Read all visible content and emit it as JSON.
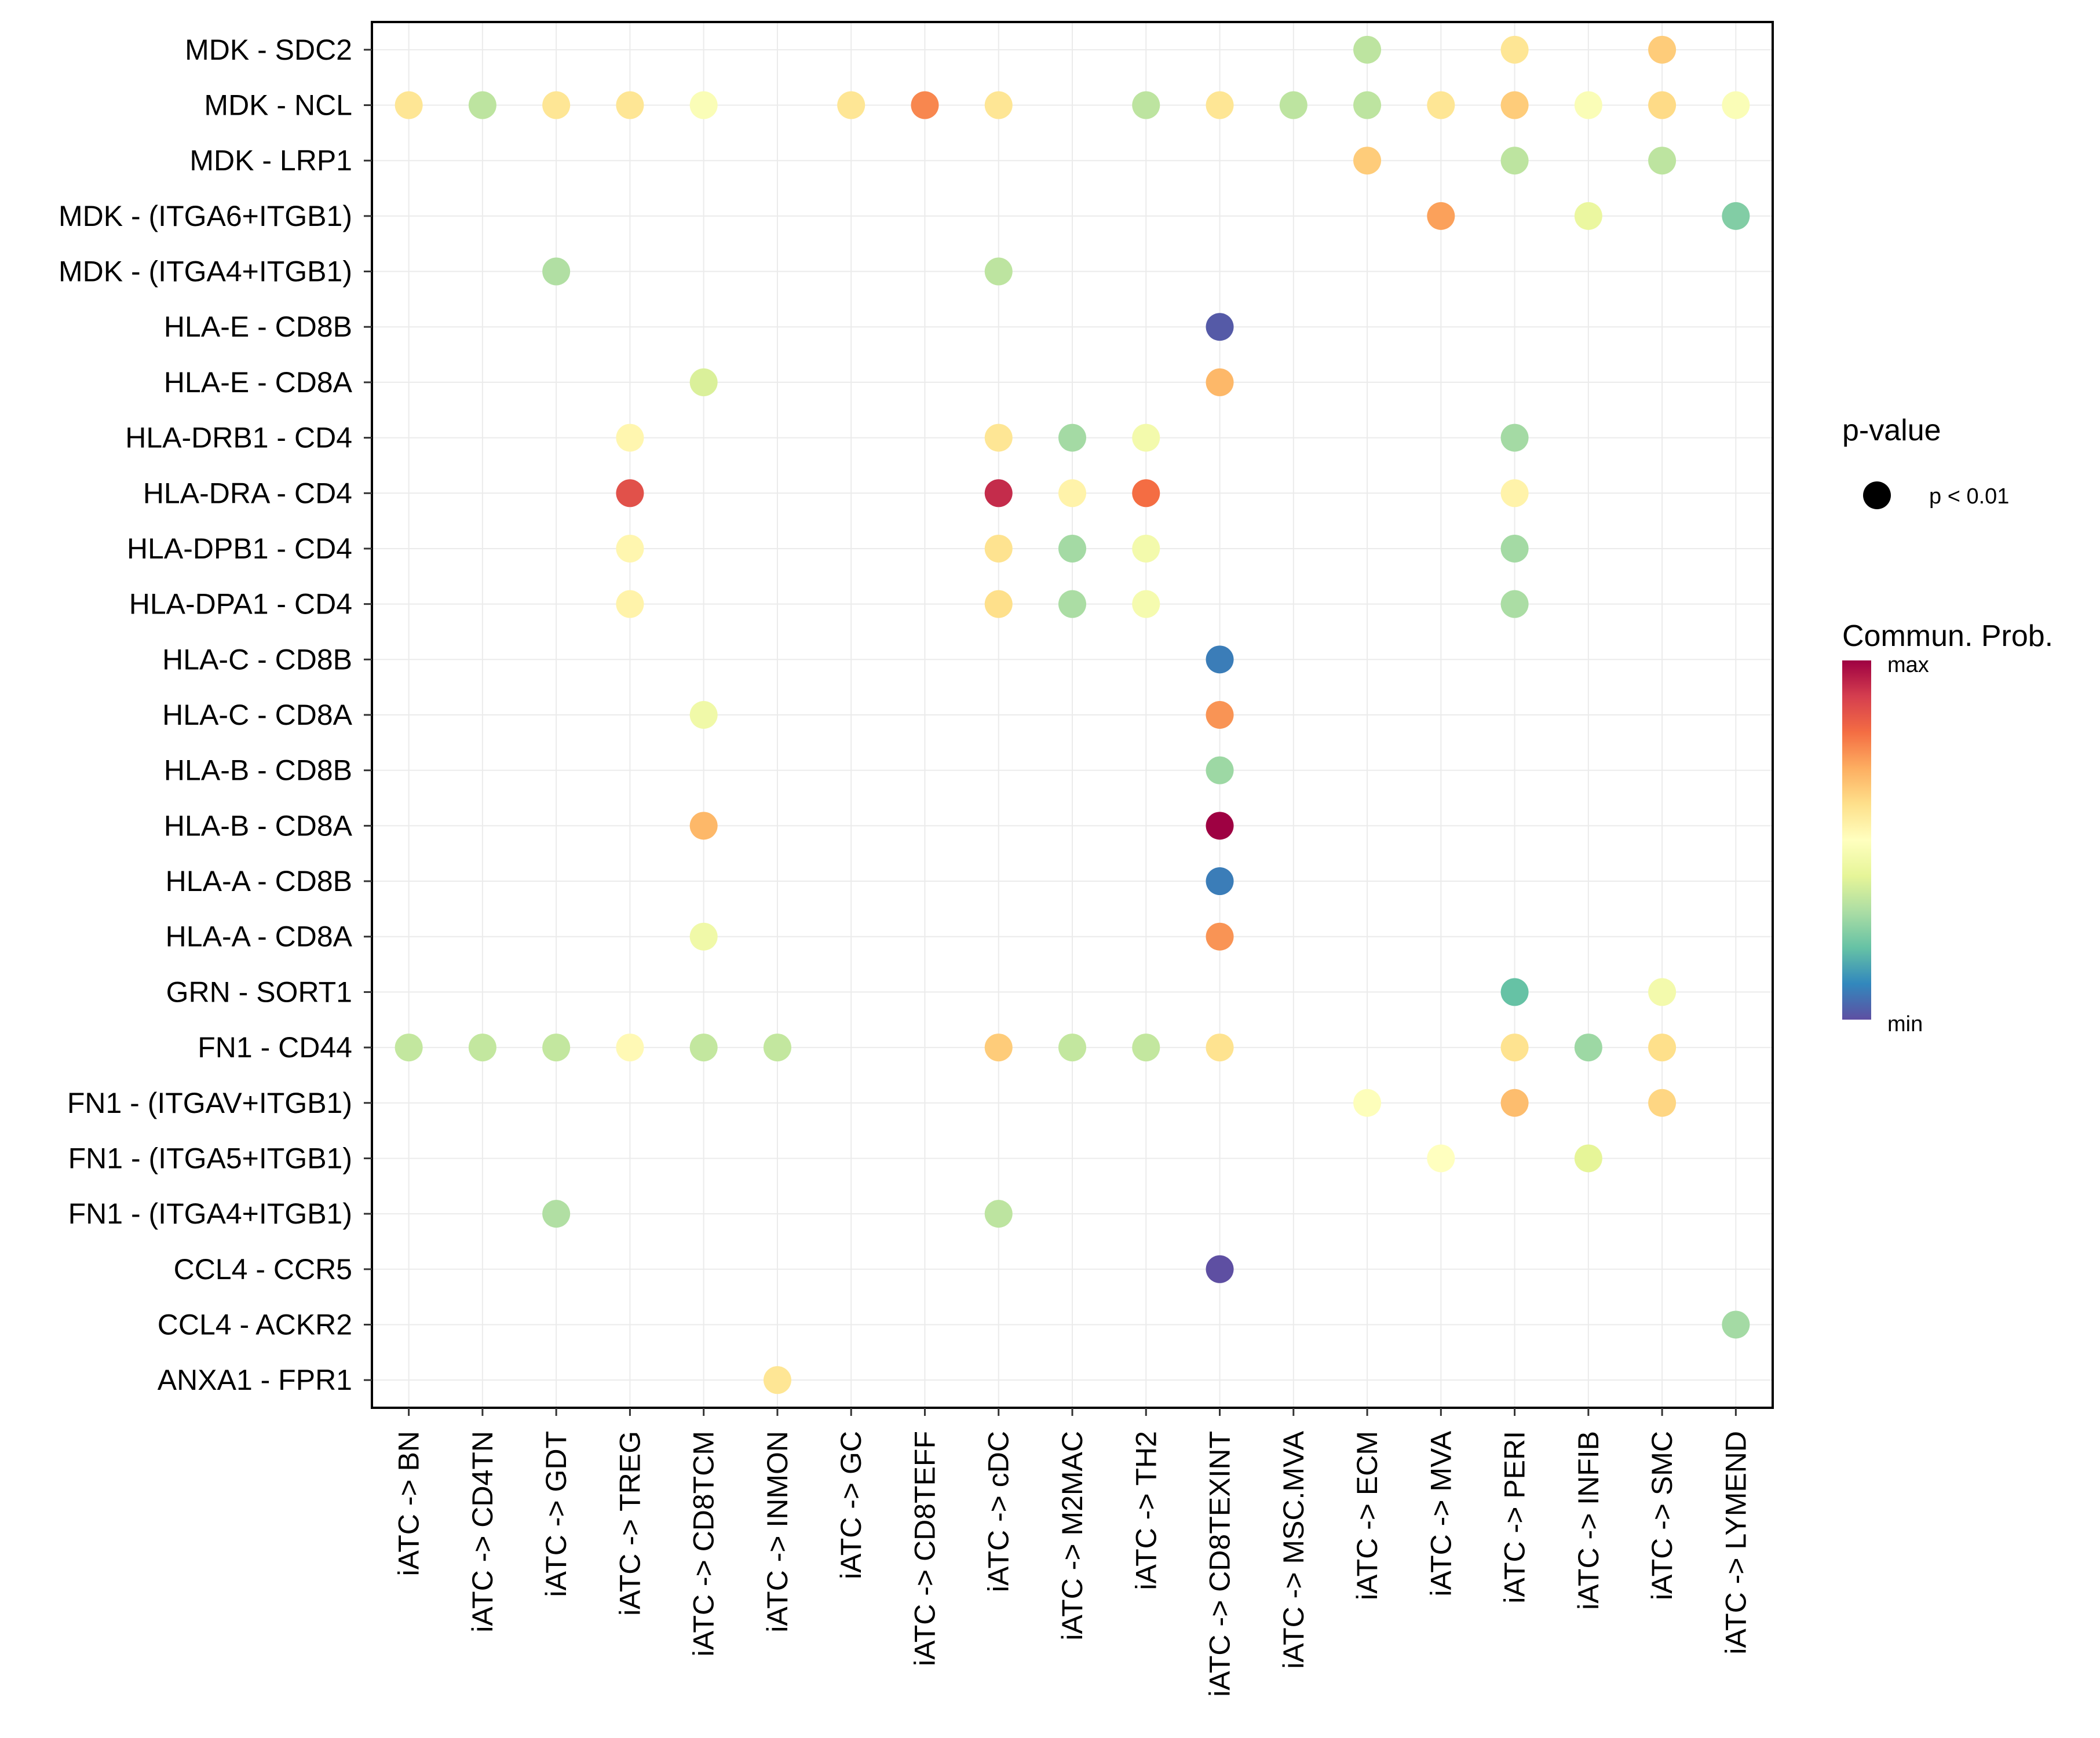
{
  "chart_data": {
    "type": "scatter",
    "subtype": "dot-matrix",
    "title": "",
    "xlabel": "",
    "ylabel": "",
    "grid": true,
    "x_categories": [
      "iATC -> BN",
      "iATC -> CD4TN",
      "iATC -> GDT",
      "iATC -> TREG",
      "iATC -> CD8TCM",
      "iATC -> INMON",
      "iATC -> GC",
      "iATC -> CD8TEFF",
      "iATC -> cDC",
      "iATC -> M2MAC",
      "iATC -> TH2",
      "iATC -> CD8TEXINT",
      "iATC -> MSC.MVA",
      "iATC -> ECM",
      "iATC -> MVA",
      "iATC -> PERI",
      "iATC -> INFIB",
      "iATC -> SMC",
      "iATC -> LYMEND"
    ],
    "y_categories": [
      "MDK - SDC2",
      "MDK - NCL",
      "MDK - LRP1",
      "MDK - (ITGA6+ITGB1)",
      "MDK - (ITGA4+ITGB1)",
      "HLA-E - CD8B",
      "HLA-E - CD8A",
      "HLA-DRB1 - CD4",
      "HLA-DRA - CD4",
      "HLA-DPB1 - CD4",
      "HLA-DPA1 - CD4",
      "HLA-C - CD8B",
      "HLA-C - CD8A",
      "HLA-B - CD8B",
      "HLA-B - CD8A",
      "HLA-A - CD8B",
      "HLA-A - CD8A",
      "GRN - SORT1",
      "FN1 - CD44",
      "FN1 - (ITGAV+ITGB1)",
      "FN1 - (ITGA5+ITGB1)",
      "FN1 - (ITGA4+ITGB1)",
      "CCL4 - CCR5",
      "CCL4 - ACKR2",
      "ANXA1 - FPR1"
    ],
    "value_scale": {
      "name": "Commun. Prob.",
      "min_label": "min",
      "max_label": "max",
      "range": [
        0,
        1
      ],
      "colormap": "Spectral (reversed)",
      "stops": [
        "#5e4fa2",
        "#3288bd",
        "#66c2a5",
        "#abdda4",
        "#e6f598",
        "#ffffbf",
        "#fee08b",
        "#fdae61",
        "#f46d43",
        "#d53e4f",
        "#9e0142"
      ]
    },
    "size_legend": {
      "title": "p-value",
      "entries": [
        {
          "label": "p < 0.01"
        }
      ]
    },
    "points": [
      {
        "y": "MDK - SDC2",
        "x": "iATC -> ECM",
        "value": 0.33
      },
      {
        "y": "MDK - SDC2",
        "x": "iATC -> PERI",
        "value": 0.58
      },
      {
        "y": "MDK - SDC2",
        "x": "iATC -> SMC",
        "value": 0.64
      },
      {
        "y": "MDK - NCL",
        "x": "iATC -> BN",
        "value": 0.58
      },
      {
        "y": "MDK - NCL",
        "x": "iATC -> CD4TN",
        "value": 0.33
      },
      {
        "y": "MDK - NCL",
        "x": "iATC -> GDT",
        "value": 0.58
      },
      {
        "y": "MDK - NCL",
        "x": "iATC -> TREG",
        "value": 0.58
      },
      {
        "y": "MDK - NCL",
        "x": "iATC -> CD8TCM",
        "value": 0.48
      },
      {
        "y": "MDK - NCL",
        "x": "iATC -> GC",
        "value": 0.58
      },
      {
        "y": "MDK - NCL",
        "x": "iATC -> CD8TEFF",
        "value": 0.76
      },
      {
        "y": "MDK - NCL",
        "x": "iATC -> cDC",
        "value": 0.58
      },
      {
        "y": "MDK - NCL",
        "x": "iATC -> TH2",
        "value": 0.33
      },
      {
        "y": "MDK - NCL",
        "x": "iATC -> CD8TEXINT",
        "value": 0.58
      },
      {
        "y": "MDK - NCL",
        "x": "iATC -> MSC.MVA",
        "value": 0.33
      },
      {
        "y": "MDK - NCL",
        "x": "iATC -> ECM",
        "value": 0.33
      },
      {
        "y": "MDK - NCL",
        "x": "iATC -> MVA",
        "value": 0.58
      },
      {
        "y": "MDK - NCL",
        "x": "iATC -> PERI",
        "value": 0.64
      },
      {
        "y": "MDK - NCL",
        "x": "iATC -> INFIB",
        "value": 0.48
      },
      {
        "y": "MDK - NCL",
        "x": "iATC -> SMC",
        "value": 0.61
      },
      {
        "y": "MDK - NCL",
        "x": "iATC -> LYMEND",
        "value": 0.48
      },
      {
        "y": "MDK - LRP1",
        "x": "iATC -> ECM",
        "value": 0.64
      },
      {
        "y": "MDK - LRP1",
        "x": "iATC -> PERI",
        "value": 0.33
      },
      {
        "y": "MDK - LRP1",
        "x": "iATC -> SMC",
        "value": 0.33
      },
      {
        "y": "MDK - (ITGA6+ITGB1)",
        "x": "iATC -> MVA",
        "value": 0.72
      },
      {
        "y": "MDK - (ITGA6+ITGB1)",
        "x": "iATC -> INFIB",
        "value": 0.42
      },
      {
        "y": "MDK - (ITGA6+ITGB1)",
        "x": "iATC -> LYMEND",
        "value": 0.24
      },
      {
        "y": "MDK - (ITGA4+ITGB1)",
        "x": "iATC -> GDT",
        "value": 0.31
      },
      {
        "y": "MDK - (ITGA4+ITGB1)",
        "x": "iATC -> cDC",
        "value": 0.33
      },
      {
        "y": "HLA-E - CD8B",
        "x": "iATC -> CD8TEXINT",
        "value": 0.02
      },
      {
        "y": "HLA-E - CD8A",
        "x": "iATC -> CD8TCM",
        "value": 0.38
      },
      {
        "y": "HLA-E - CD8A",
        "x": "iATC -> CD8TEXINT",
        "value": 0.68
      },
      {
        "y": "HLA-DRB1 - CD4",
        "x": "iATC -> TREG",
        "value": 0.53
      },
      {
        "y": "HLA-DRB1 - CD4",
        "x": "iATC -> cDC",
        "value": 0.58
      },
      {
        "y": "HLA-DRB1 - CD4",
        "x": "iATC -> M2MAC",
        "value": 0.29
      },
      {
        "y": "HLA-DRB1 - CD4",
        "x": "iATC -> TH2",
        "value": 0.45
      },
      {
        "y": "HLA-DRB1 - CD4",
        "x": "iATC -> PERI",
        "value": 0.29
      },
      {
        "y": "HLA-DRA - CD4",
        "x": "iATC -> TREG",
        "value": 0.86
      },
      {
        "y": "HLA-DRA - CD4",
        "x": "iATC -> cDC",
        "value": 0.93
      },
      {
        "y": "HLA-DRA - CD4",
        "x": "iATC -> M2MAC",
        "value": 0.54
      },
      {
        "y": "HLA-DRA - CD4",
        "x": "iATC -> TH2",
        "value": 0.8
      },
      {
        "y": "HLA-DRA - CD4",
        "x": "iATC -> PERI",
        "value": 0.54
      },
      {
        "y": "HLA-DPB1 - CD4",
        "x": "iATC -> TREG",
        "value": 0.53
      },
      {
        "y": "HLA-DPB1 - CD4",
        "x": "iATC -> cDC",
        "value": 0.59
      },
      {
        "y": "HLA-DPB1 - CD4",
        "x": "iATC -> M2MAC",
        "value": 0.29
      },
      {
        "y": "HLA-DPB1 - CD4",
        "x": "iATC -> TH2",
        "value": 0.45
      },
      {
        "y": "HLA-DPB1 - CD4",
        "x": "iATC -> PERI",
        "value": 0.29
      },
      {
        "y": "HLA-DPA1 - CD4",
        "x": "iATC -> TREG",
        "value": 0.54
      },
      {
        "y": "HLA-DPA1 - CD4",
        "x": "iATC -> cDC",
        "value": 0.6
      },
      {
        "y": "HLA-DPA1 - CD4",
        "x": "iATC -> M2MAC",
        "value": 0.3
      },
      {
        "y": "HLA-DPA1 - CD4",
        "x": "iATC -> TH2",
        "value": 0.46
      },
      {
        "y": "HLA-DPA1 - CD4",
        "x": "iATC -> PERI",
        "value": 0.3
      },
      {
        "y": "HLA-C - CD8B",
        "x": "iATC -> CD8TEXINT",
        "value": 0.08
      },
      {
        "y": "HLA-C - CD8A",
        "x": "iATC -> CD8TCM",
        "value": 0.44
      },
      {
        "y": "HLA-C - CD8A",
        "x": "iATC -> CD8TEXINT",
        "value": 0.74
      },
      {
        "y": "HLA-B - CD8B",
        "x": "iATC -> CD8TEXINT",
        "value": 0.28
      },
      {
        "y": "HLA-B - CD8A",
        "x": "iATC -> CD8TCM",
        "value": 0.68
      },
      {
        "y": "HLA-B - CD8A",
        "x": "iATC -> CD8TEXINT",
        "value": 1.0
      },
      {
        "y": "HLA-A - CD8B",
        "x": "iATC -> CD8TEXINT",
        "value": 0.08
      },
      {
        "y": "HLA-A - CD8A",
        "x": "iATC -> CD8TCM",
        "value": 0.44
      },
      {
        "y": "HLA-A - CD8A",
        "x": "iATC -> CD8TEXINT",
        "value": 0.74
      },
      {
        "y": "GRN - SORT1",
        "x": "iATC -> PERI",
        "value": 0.2
      },
      {
        "y": "GRN - SORT1",
        "x": "iATC -> SMC",
        "value": 0.45
      },
      {
        "y": "FN1 - CD44",
        "x": "iATC -> BN",
        "value": 0.34
      },
      {
        "y": "FN1 - CD44",
        "x": "iATC -> CD4TN",
        "value": 0.34
      },
      {
        "y": "FN1 - CD44",
        "x": "iATC -> GDT",
        "value": 0.34
      },
      {
        "y": "FN1 - CD44",
        "x": "iATC -> TREG",
        "value": 0.52
      },
      {
        "y": "FN1 - CD44",
        "x": "iATC -> CD8TCM",
        "value": 0.34
      },
      {
        "y": "FN1 - CD44",
        "x": "iATC -> INMON",
        "value": 0.34
      },
      {
        "y": "FN1 - CD44",
        "x": "iATC -> cDC",
        "value": 0.64
      },
      {
        "y": "FN1 - CD44",
        "x": "iATC -> M2MAC",
        "value": 0.34
      },
      {
        "y": "FN1 - CD44",
        "x": "iATC -> TH2",
        "value": 0.34
      },
      {
        "y": "FN1 - CD44",
        "x": "iATC -> CD8TEXINT",
        "value": 0.59
      },
      {
        "y": "FN1 - CD44",
        "x": "iATC -> PERI",
        "value": 0.59
      },
      {
        "y": "FN1 - CD44",
        "x": "iATC -> INFIB",
        "value": 0.28
      },
      {
        "y": "FN1 - CD44",
        "x": "iATC -> SMC",
        "value": 0.6
      },
      {
        "y": "FN1 - (ITGAV+ITGB1)",
        "x": "iATC -> ECM",
        "value": 0.49
      },
      {
        "y": "FN1 - (ITGAV+ITGB1)",
        "x": "iATC -> PERI",
        "value": 0.67
      },
      {
        "y": "FN1 - (ITGAV+ITGB1)",
        "x": "iATC -> SMC",
        "value": 0.62
      },
      {
        "y": "FN1 - (ITGA5+ITGB1)",
        "x": "iATC -> MVA",
        "value": 0.5
      },
      {
        "y": "FN1 - (ITGA5+ITGB1)",
        "x": "iATC -> INFIB",
        "value": 0.4
      },
      {
        "y": "FN1 - (ITGA4+ITGB1)",
        "x": "iATC -> GDT",
        "value": 0.31
      },
      {
        "y": "FN1 - (ITGA4+ITGB1)",
        "x": "iATC -> cDC",
        "value": 0.33
      },
      {
        "y": "CCL4 - CCR5",
        "x": "iATC -> CD8TEXINT",
        "value": 0.0
      },
      {
        "y": "CCL4 - ACKR2",
        "x": "iATC -> LYMEND",
        "value": 0.29
      },
      {
        "y": "ANXA1 - FPR1",
        "x": "iATC -> INMON",
        "value": 0.58
      }
    ]
  }
}
